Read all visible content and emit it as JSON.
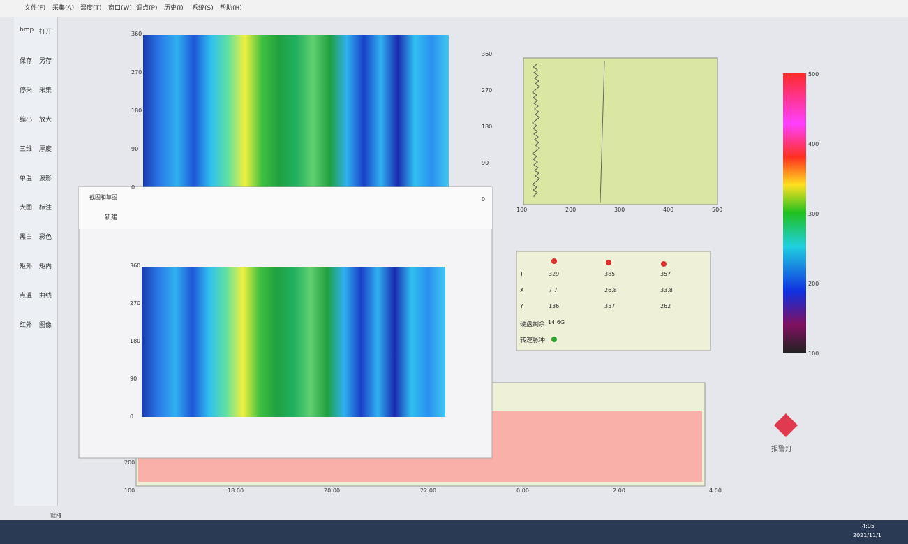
{
  "menu": [
    "文件(F)",
    "采集(A)",
    "温度(T)",
    "窗口(W)",
    "调点(P)",
    "历史(I)",
    "系统(S)",
    "帮助(H)"
  ],
  "toolbar": [
    "bmp",
    "打开",
    "保存",
    "另存",
    "停采",
    "采集",
    "缩小",
    "放大",
    "三维",
    "厚度",
    "单温",
    "波形",
    "大图",
    "标注",
    "黑白",
    "彩色",
    "矩外",
    "矩内",
    "点温",
    "曲线",
    "红外",
    "图像"
  ],
  "heatmap": {
    "yticks": [
      "360",
      "270",
      "180",
      "90",
      "0"
    ]
  },
  "side_axis": {
    "yticks": [
      "360",
      "270",
      "180",
      "90",
      "0"
    ]
  },
  "waveform": {
    "xticks": [
      "100",
      "200",
      "300",
      "400",
      "500"
    ]
  },
  "points": {
    "rows": [
      [
        "T",
        "329",
        "385",
        "357"
      ],
      [
        "X",
        "7.7",
        "26.8",
        "33.8"
      ],
      [
        "Y",
        "136",
        "357",
        "262"
      ]
    ],
    "disk_label": "硬盘剩余",
    "disk_value": "14.6G",
    "pulse": "转速脉冲"
  },
  "colorbar": {
    "ticks": [
      "500",
      "400",
      "300",
      "200",
      "100"
    ]
  },
  "trend": {
    "yticks": [
      "200",
      "100"
    ],
    "xticks": [
      "18:00",
      "20:00",
      "22:00",
      "0:00",
      "2:00",
      "4:00"
    ]
  },
  "alarm": "报警灯",
  "snip": {
    "title": "截图和草图",
    "new": "新建",
    "yticks": [
      "360",
      "270",
      "180",
      "90",
      "0"
    ]
  },
  "status": "就绪",
  "taskbar": {
    "time": "4:05",
    "date": "2021/11/1"
  }
}
